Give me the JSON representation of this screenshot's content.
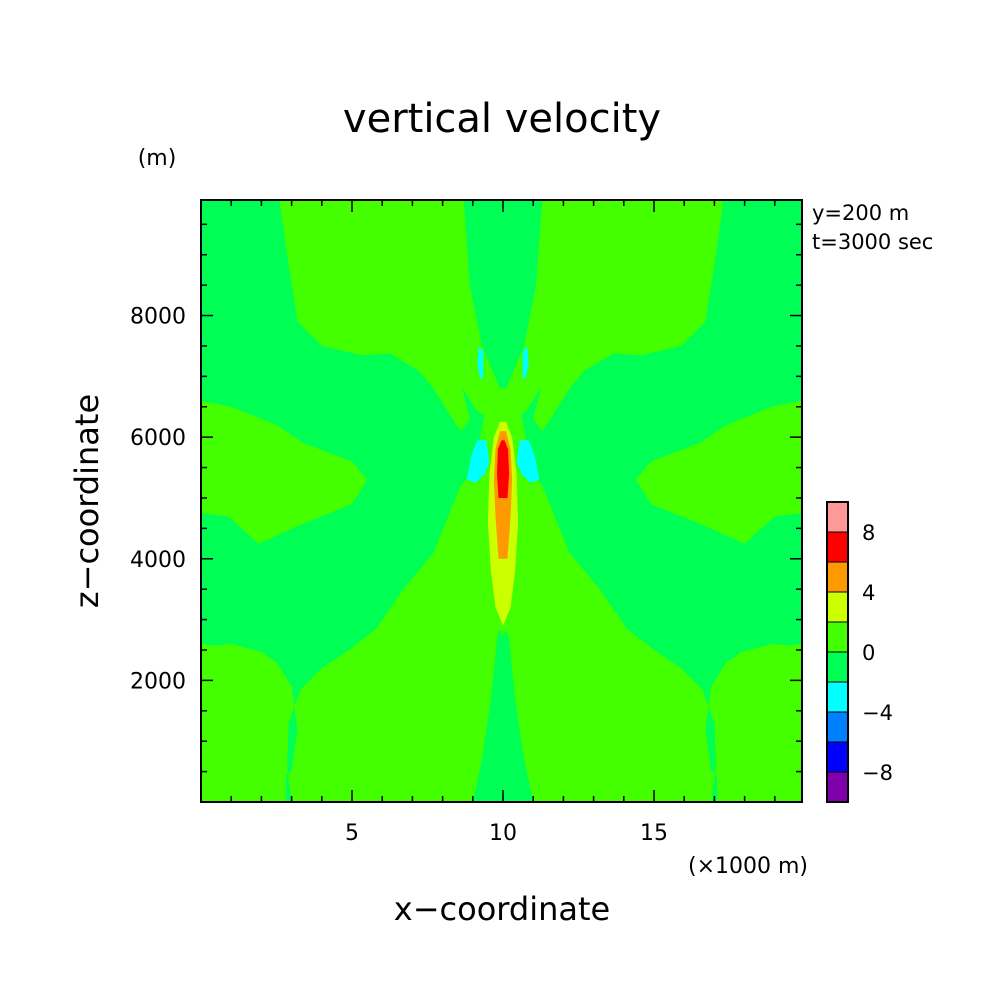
{
  "chart_data": {
    "type": "heatmap",
    "title": "vertical velocity",
    "xlabel": "x−coordinate",
    "ylabel": "z−coordinate",
    "x_unit": "(×1000 m)",
    "y_unit": "(m)",
    "xlim": [
      0,
      19.9
    ],
    "ylim": [
      0,
      9900
    ],
    "x_ticks": [
      {
        "value": 5,
        "label": "5"
      },
      {
        "value": 10,
        "label": "10"
      },
      {
        "value": 15,
        "label": "15"
      }
    ],
    "y_ticks": [
      {
        "value": 2000,
        "label": "2000"
      },
      {
        "value": 4000,
        "label": "4000"
      },
      {
        "value": 6000,
        "label": "6000"
      },
      {
        "value": 8000,
        "label": "8000"
      }
    ],
    "annotations": [
      "y=200 m",
      "t=3000 sec"
    ],
    "colorbar": {
      "min": -10,
      "max": 10,
      "levels": [
        {
          "from": -10,
          "to": -8,
          "color": "#7f00aa"
        },
        {
          "from": -8,
          "to": -6,
          "color": "#0000ff"
        },
        {
          "from": -6,
          "to": -4,
          "color": "#0080ff"
        },
        {
          "from": -4,
          "to": -2,
          "color": "#00ffff"
        },
        {
          "from": -2,
          "to": 0,
          "color": "#00ff55"
        },
        {
          "from": 0,
          "to": 2,
          "color": "#44ff00"
        },
        {
          "from": 2,
          "to": 4,
          "color": "#ccff00"
        },
        {
          "from": 4,
          "to": 6,
          "color": "#ff9900"
        },
        {
          "from": 6,
          "to": 8,
          "color": "#ff0000"
        },
        {
          "from": 8,
          "to": 10,
          "color": "#ff9999"
        }
      ],
      "tick_labels": [
        {
          "value": 8,
          "label": "8"
        },
        {
          "value": 4,
          "label": "4"
        },
        {
          "value": 0,
          "label": "0"
        },
        {
          "value": -4,
          "label": "−4"
        },
        {
          "value": -8,
          "label": "−8"
        }
      ]
    },
    "background_color": "#44ff00",
    "regions": [
      {
        "name": "negative-left-lobe",
        "color": "#00ff55",
        "points": [
          [
            0,
            0
          ],
          [
            3.0,
            0
          ],
          [
            2.85,
            600
          ],
          [
            2.9,
            1300
          ],
          [
            3.3,
            1850
          ],
          [
            4.0,
            2200
          ],
          [
            4.9,
            2500
          ],
          [
            5.8,
            2850
          ],
          [
            6.7,
            3500
          ],
          [
            7.7,
            4100
          ],
          [
            8.6,
            5200
          ],
          [
            9.3,
            5600
          ],
          [
            9.6,
            5750
          ],
          [
            9.7,
            6250
          ],
          [
            9.1,
            6450
          ],
          [
            8.3,
            7100
          ],
          [
            7.8,
            7300
          ],
          [
            7.1,
            7400
          ],
          [
            5.3,
            7350
          ],
          [
            4.0,
            7500
          ],
          [
            3.2,
            7900
          ],
          [
            2.85,
            9000
          ],
          [
            2.6,
            9900
          ],
          [
            0,
            9900
          ],
          [
            0,
            6600
          ],
          [
            1.0,
            6500
          ],
          [
            2.5,
            6200
          ],
          [
            3.4,
            5900
          ],
          [
            5.0,
            5600
          ],
          [
            5.5,
            5300
          ],
          [
            5.0,
            4900
          ],
          [
            3.5,
            4600
          ],
          [
            1.9,
            4250
          ],
          [
            0.9,
            4700
          ],
          [
            0,
            4750
          ],
          [
            0,
            2600
          ],
          [
            0.8,
            2550
          ],
          [
            1.8,
            2500
          ],
          [
            2.5,
            2300
          ],
          [
            3.0,
            1900
          ],
          [
            3.2,
            1200
          ],
          [
            3.0,
            500
          ]
        ]
      },
      {
        "name": "negative-left-lobe-core",
        "color": "#44ff00",
        "points": [
          [
            0,
            0
          ],
          [
            0,
            2550
          ],
          [
            1.0,
            2600
          ],
          [
            2.1,
            2450
          ],
          [
            2.7,
            2000
          ],
          [
            2.85,
            1300
          ],
          [
            2.8,
            0
          ]
        ]
      },
      {
        "name": "negative-right-lobe",
        "color": "#00ff55",
        "points": [
          [
            19.9,
            0
          ],
          [
            16.9,
            0
          ],
          [
            17.05,
            600
          ],
          [
            17.0,
            1300
          ],
          [
            16.6,
            1850
          ],
          [
            15.9,
            2200
          ],
          [
            15.0,
            2500
          ],
          [
            14.1,
            2850
          ],
          [
            13.2,
            3500
          ],
          [
            12.2,
            4100
          ],
          [
            11.3,
            5200
          ],
          [
            10.6,
            5600
          ],
          [
            10.3,
            5750
          ],
          [
            10.2,
            6250
          ],
          [
            10.8,
            6450
          ],
          [
            11.6,
            7100
          ],
          [
            12.1,
            7300
          ],
          [
            12.8,
            7400
          ],
          [
            14.6,
            7350
          ],
          [
            15.9,
            7500
          ],
          [
            16.7,
            7900
          ],
          [
            17.05,
            9000
          ],
          [
            17.3,
            9900
          ],
          [
            19.9,
            9900
          ],
          [
            19.9,
            6600
          ],
          [
            18.9,
            6500
          ],
          [
            17.4,
            6200
          ],
          [
            16.5,
            5900
          ],
          [
            14.9,
            5600
          ],
          [
            14.4,
            5300
          ],
          [
            14.9,
            4900
          ],
          [
            16.4,
            4600
          ],
          [
            18.0,
            4250
          ],
          [
            19.0,
            4700
          ],
          [
            19.9,
            4750
          ],
          [
            19.9,
            2600
          ],
          [
            19.1,
            2550
          ],
          [
            18.1,
            2500
          ],
          [
            17.4,
            2300
          ],
          [
            16.9,
            1900
          ],
          [
            16.7,
            1200
          ],
          [
            16.9,
            500
          ]
        ]
      },
      {
        "name": "negative-right-lobe-core",
        "color": "#44ff00",
        "points": [
          [
            19.9,
            0
          ],
          [
            19.9,
            2550
          ],
          [
            18.9,
            2600
          ],
          [
            17.8,
            2450
          ],
          [
            17.2,
            2000
          ],
          [
            17.05,
            1300
          ],
          [
            17.1,
            0
          ]
        ]
      },
      {
        "name": "central-positive-band",
        "color": "#44ff00",
        "points": [
          [
            8.3,
            0
          ],
          [
            9.1,
            100
          ],
          [
            9.5,
            700
          ],
          [
            9.7,
            1700
          ],
          [
            9.9,
            2700
          ],
          [
            10.0,
            3200
          ],
          [
            10.1,
            2700
          ],
          [
            10.3,
            1700
          ],
          [
            10.5,
            700
          ],
          [
            10.9,
            100
          ],
          [
            11.7,
            0
          ]
        ]
      },
      {
        "name": "central-negative-column",
        "color": "#00ff55",
        "points": [
          [
            9.0,
            0
          ],
          [
            9.3,
            700
          ],
          [
            9.6,
            1700
          ],
          [
            9.8,
            2700
          ],
          [
            10.0,
            3000
          ],
          [
            10.2,
            2700
          ],
          [
            10.4,
            1700
          ],
          [
            10.7,
            700
          ],
          [
            11.0,
            0
          ]
        ]
      },
      {
        "name": "upper-central-column",
        "color": "#00ff55",
        "points": [
          [
            8.7,
            9900
          ],
          [
            8.9,
            8500
          ],
          [
            9.3,
            7500
          ],
          [
            9.9,
            6800
          ],
          [
            10.1,
            6800
          ],
          [
            10.7,
            7500
          ],
          [
            11.1,
            8500
          ],
          [
            11.3,
            9900
          ]
        ]
      },
      {
        "name": "upper-left-band",
        "color": "#44ff00",
        "points": [
          [
            5.2,
            9900
          ],
          [
            5.35,
            8500
          ],
          [
            5.6,
            7600
          ],
          [
            6.5,
            7300
          ],
          [
            7.2,
            7100
          ],
          [
            7.7,
            6800
          ],
          [
            8.2,
            6400
          ],
          [
            8.6,
            6100
          ],
          [
            8.9,
            6300
          ],
          [
            8.7,
            6700
          ],
          [
            8.4,
            7400
          ],
          [
            8.2,
            8500
          ],
          [
            8.5,
            9900
          ]
        ]
      },
      {
        "name": "upper-right-band",
        "color": "#44ff00",
        "points": [
          [
            14.7,
            9900
          ],
          [
            14.55,
            8500
          ],
          [
            14.3,
            7600
          ],
          [
            13.4,
            7300
          ],
          [
            12.7,
            7100
          ],
          [
            12.2,
            6800
          ],
          [
            11.7,
            6400
          ],
          [
            11.3,
            6100
          ],
          [
            11.0,
            6300
          ],
          [
            11.2,
            6700
          ],
          [
            11.5,
            7400
          ],
          [
            11.7,
            8500
          ],
          [
            11.4,
            9900
          ]
        ]
      },
      {
        "name": "updraft-plume-outer",
        "color": "#44ff00",
        "points": [
          [
            10.0,
            2700
          ],
          [
            9.5,
            3400
          ],
          [
            9.2,
            4200
          ],
          [
            9.05,
            5000
          ],
          [
            9.15,
            5700
          ],
          [
            9.4,
            6400
          ],
          [
            9.7,
            6700
          ],
          [
            10.0,
            6750
          ],
          [
            10.3,
            6700
          ],
          [
            10.6,
            6400
          ],
          [
            10.85,
            5700
          ],
          [
            10.95,
            5000
          ],
          [
            10.8,
            4200
          ],
          [
            10.5,
            3400
          ]
        ]
      },
      {
        "name": "updraft-yellow",
        "color": "#ccff00",
        "points": [
          [
            10.0,
            2900
          ],
          [
            9.75,
            3200
          ],
          [
            9.6,
            3800
          ],
          [
            9.5,
            4600
          ],
          [
            9.55,
            5400
          ],
          [
            9.7,
            6000
          ],
          [
            9.9,
            6250
          ],
          [
            10.1,
            6250
          ],
          [
            10.3,
            6000
          ],
          [
            10.45,
            5400
          ],
          [
            10.5,
            4600
          ],
          [
            10.4,
            3800
          ],
          [
            10.25,
            3200
          ]
        ]
      },
      {
        "name": "updraft-orange",
        "color": "#ff9900",
        "points": [
          [
            9.85,
            4000
          ],
          [
            9.75,
            4700
          ],
          [
            9.7,
            5300
          ],
          [
            9.75,
            5800
          ],
          [
            9.9,
            6100
          ],
          [
            10.1,
            6100
          ],
          [
            10.25,
            5800
          ],
          [
            10.3,
            5300
          ],
          [
            10.25,
            4700
          ],
          [
            10.15,
            4000
          ]
        ]
      },
      {
        "name": "updraft-red",
        "color": "#ff0000",
        "points": [
          [
            9.85,
            5000
          ],
          [
            9.8,
            5400
          ],
          [
            9.83,
            5800
          ],
          [
            9.95,
            5950
          ],
          [
            10.05,
            5950
          ],
          [
            10.17,
            5800
          ],
          [
            10.2,
            5400
          ],
          [
            10.15,
            5000
          ]
        ]
      },
      {
        "name": "downdraft-left-lower",
        "color": "#00ffff",
        "points": [
          [
            8.8,
            5300
          ],
          [
            8.95,
            5700
          ],
          [
            9.15,
            5950
          ],
          [
            9.45,
            5950
          ],
          [
            9.55,
            5600
          ],
          [
            9.4,
            5400
          ],
          [
            9.1,
            5250
          ]
        ]
      },
      {
        "name": "downdraft-right-lower",
        "color": "#00ffff",
        "points": [
          [
            11.2,
            5300
          ],
          [
            11.05,
            5700
          ],
          [
            10.85,
            5950
          ],
          [
            10.55,
            5950
          ],
          [
            10.45,
            5600
          ],
          [
            10.6,
            5400
          ],
          [
            10.9,
            5250
          ]
        ]
      },
      {
        "name": "downdraft-left-upper",
        "color": "#00ffff",
        "points": [
          [
            9.2,
            7500
          ],
          [
            9.35,
            7400
          ],
          [
            9.35,
            7000
          ],
          [
            9.25,
            6950
          ],
          [
            9.15,
            7200
          ]
        ]
      },
      {
        "name": "downdraft-right-upper",
        "color": "#00ffff",
        "points": [
          [
            10.8,
            7500
          ],
          [
            10.65,
            7400
          ],
          [
            10.65,
            7000
          ],
          [
            10.75,
            6950
          ],
          [
            10.85,
            7200
          ]
        ]
      }
    ]
  }
}
